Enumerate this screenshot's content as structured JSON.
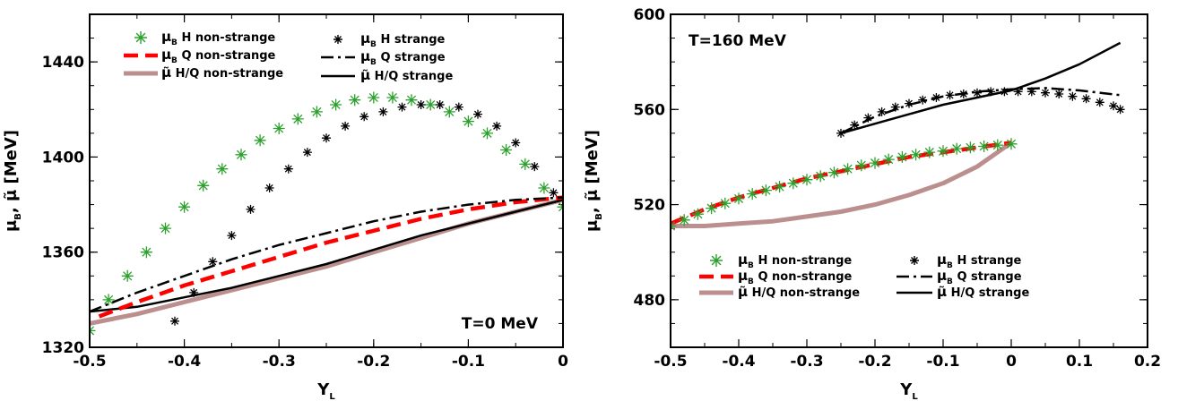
{
  "chart_data": [
    {
      "type": "line",
      "annotation": "T=0 MeV",
      "xlabel": "Y",
      "xlabel_sub": "L",
      "ylabel_parts": [
        "μ",
        "B",
        ", μ̃ [MeV]"
      ],
      "xlim": [
        -0.5,
        0
      ],
      "ylim": [
        1320,
        1460
      ],
      "x_ticks": [
        -0.5,
        -0.4,
        -0.3,
        -0.2,
        -0.1,
        0
      ],
      "x_tick_labels": [
        "-0.5",
        "-0.4",
        "-0.3",
        "-0.2",
        "-0.1",
        "0"
      ],
      "y_ticks": [
        1320,
        1360,
        1400,
        1440
      ],
      "y_tick_labels": [
        "1320",
        "1360",
        "1400",
        "1440"
      ],
      "legend_position": "top",
      "series": [
        {
          "name": "μB H non-strange",
          "label_main": "μ",
          "label_sub": "B",
          "label_rest": " H non-strange",
          "color": "#2ca02c",
          "style": "star-markers",
          "x": [
            -0.5,
            -0.48,
            -0.46,
            -0.44,
            -0.42,
            -0.4,
            -0.38,
            -0.36,
            -0.34,
            -0.32,
            -0.3,
            -0.28,
            -0.26,
            -0.24,
            -0.22,
            -0.2,
            -0.18,
            -0.16,
            -0.14,
            -0.12,
            -0.1,
            -0.08,
            -0.06,
            -0.04,
            -0.02,
            0
          ],
          "y": [
            1327,
            1340,
            1350,
            1360,
            1370,
            1379,
            1388,
            1395,
            1401,
            1407,
            1412,
            1416,
            1419,
            1422,
            1424,
            1425,
            1425,
            1424,
            1422,
            1419,
            1415,
            1410,
            1403,
            1397,
            1387,
            1379
          ]
        },
        {
          "name": "μB Q non-strange",
          "label_main": "μ",
          "label_sub": "B",
          "label_rest": " Q non-strange",
          "color": "#ff0000",
          "style": "dashed",
          "x": [
            -0.49,
            -0.45,
            -0.4,
            -0.35,
            -0.3,
            -0.25,
            -0.2,
            -0.15,
            -0.1,
            -0.05,
            0
          ],
          "y": [
            1333,
            1339,
            1346,
            1352,
            1358,
            1364,
            1369,
            1374,
            1378,
            1381,
            1383
          ]
        },
        {
          "name": "μ̃ H/Q non-strange",
          "label_main": "μ̃",
          "label_sub": "",
          "label_rest": "   H/Q non-strange",
          "color": "#bc8f8f",
          "style": "thick",
          "x": [
            -0.5,
            -0.45,
            -0.4,
            -0.35,
            -0.3,
            -0.25,
            -0.2,
            -0.15,
            -0.1,
            -0.05,
            0
          ],
          "y": [
            1330,
            1334,
            1339,
            1344,
            1349,
            1354,
            1360,
            1366,
            1372,
            1377,
            1382
          ]
        },
        {
          "name": "μB H strange",
          "label_main": "μ",
          "label_sub": "B",
          "label_rest": " H strange",
          "color": "#000000",
          "style": "star-markers",
          "x": [
            -0.41,
            -0.39,
            -0.37,
            -0.35,
            -0.33,
            -0.31,
            -0.29,
            -0.27,
            -0.25,
            -0.23,
            -0.21,
            -0.19,
            -0.17,
            -0.15,
            -0.13,
            -0.11,
            -0.09,
            -0.07,
            -0.05,
            -0.03,
            -0.01
          ],
          "y": [
            1331,
            1343,
            1356,
            1367,
            1378,
            1387,
            1395,
            1402,
            1408,
            1413,
            1417,
            1419,
            1421,
            1422,
            1422,
            1421,
            1418,
            1413,
            1406,
            1396,
            1385
          ]
        },
        {
          "name": "μB Q strange",
          "label_main": "μ",
          "label_sub": "B",
          "label_rest": " Q strange",
          "color": "#000000",
          "style": "dashdot",
          "x": [
            -0.5,
            -0.45,
            -0.4,
            -0.35,
            -0.3,
            -0.25,
            -0.2,
            -0.15,
            -0.1,
            -0.05,
            0
          ],
          "y": [
            1335,
            1343,
            1350,
            1357,
            1363,
            1368,
            1373,
            1377,
            1380,
            1382,
            1383
          ]
        },
        {
          "name": "μ̃ H/Q strange",
          "label_main": "μ̃",
          "label_sub": "",
          "label_rest": "   H/Q strange",
          "color": "#000000",
          "style": "solid",
          "x": [
            -0.5,
            -0.45,
            -0.4,
            -0.35,
            -0.3,
            -0.25,
            -0.2,
            -0.15,
            -0.1,
            -0.05,
            0
          ],
          "y": [
            1335,
            1337,
            1341,
            1345,
            1350,
            1355,
            1361,
            1367,
            1372,
            1377,
            1382
          ]
        }
      ]
    },
    {
      "type": "line",
      "annotation": "T=160 MeV",
      "xlabel": "Y",
      "xlabel_sub": "L",
      "ylabel_parts": [
        "μ",
        "B",
        ", μ̃ [MeV]"
      ],
      "xlim": [
        -0.5,
        0.2
      ],
      "ylim": [
        460,
        600
      ],
      "x_ticks": [
        -0.5,
        -0.4,
        -0.3,
        -0.2,
        -0.1,
        0,
        0.1,
        0.2
      ],
      "x_tick_labels": [
        "-0.5",
        "-0.4",
        "-0.3",
        "-0.2",
        "-0.1",
        "0",
        "0.1",
        "0.2"
      ],
      "y_ticks": [
        480,
        520,
        560,
        600
      ],
      "y_tick_labels": [
        "480",
        "520",
        "560",
        "600"
      ],
      "legend_position": "bottom",
      "series": [
        {
          "name": "μB H non-strange",
          "label_main": "μ",
          "label_sub": "B",
          "label_rest": " H non-strange",
          "color": "#2ca02c",
          "style": "star-markers",
          "x": [
            -0.5,
            -0.48,
            -0.46,
            -0.44,
            -0.42,
            -0.4,
            -0.38,
            -0.36,
            -0.34,
            -0.32,
            -0.3,
            -0.28,
            -0.26,
            -0.24,
            -0.22,
            -0.2,
            -0.18,
            -0.16,
            -0.14,
            -0.12,
            -0.1,
            -0.08,
            -0.06,
            -0.04,
            -0.02,
            0
          ],
          "y": [
            511,
            513.5,
            516,
            518.5,
            520.5,
            522.5,
            524.5,
            526,
            527.5,
            529,
            530.5,
            532,
            533.5,
            535,
            536.5,
            537.5,
            539,
            540,
            541,
            542,
            542.5,
            543.5,
            544,
            544.5,
            545,
            545.5
          ]
        },
        {
          "name": "μB Q non-strange",
          "label_main": "μ",
          "label_sub": "B",
          "label_rest": " Q non-strange",
          "color": "#ff0000",
          "style": "dashed",
          "x": [
            -0.5,
            -0.45,
            -0.4,
            -0.35,
            -0.3,
            -0.25,
            -0.2,
            -0.15,
            -0.1,
            -0.05,
            0
          ],
          "y": [
            512,
            518,
            523,
            527,
            531,
            534,
            537,
            540,
            542,
            544,
            546
          ]
        },
        {
          "name": "μ̃ H/Q non-strange",
          "label_main": "μ̃",
          "label_sub": "",
          "label_rest": "   H/Q non-strange",
          "color": "#bc8f8f",
          "style": "thick",
          "x": [
            -0.5,
            -0.45,
            -0.4,
            -0.35,
            -0.3,
            -0.25,
            -0.2,
            -0.15,
            -0.1,
            -0.05,
            0
          ],
          "y": [
            511,
            511,
            512,
            513,
            515,
            517,
            520,
            524,
            529,
            536,
            546
          ]
        },
        {
          "name": "μB H strange",
          "label_main": "μ",
          "label_sub": "B",
          "label_rest": " H strange",
          "color": "#000000",
          "style": "star-markers",
          "x": [
            -0.25,
            -0.23,
            -0.21,
            -0.19,
            -0.17,
            -0.15,
            -0.13,
            -0.11,
            -0.09,
            -0.07,
            -0.05,
            -0.03,
            -0.01,
            0.01,
            0.03,
            0.05,
            0.07,
            0.09,
            0.11,
            0.13,
            0.15,
            0.16
          ],
          "y": [
            550,
            553.5,
            556.5,
            559,
            561,
            562.5,
            564,
            565,
            566,
            566.5,
            567,
            567.5,
            567.5,
            567.5,
            567.5,
            567,
            566.5,
            565.5,
            564.5,
            563,
            561.5,
            560
          ]
        },
        {
          "name": "μB Q strange",
          "label_main": "μ",
          "label_sub": "B",
          "label_rest": " Q strange",
          "color": "#000000",
          "style": "dashdot",
          "x": [
            -0.25,
            -0.2,
            -0.15,
            -0.1,
            -0.05,
            0,
            0.05,
            0.1,
            0.16
          ],
          "y": [
            550,
            557,
            562,
            565.5,
            567.5,
            568.5,
            569,
            568,
            566
          ]
        },
        {
          "name": "μ̃ H/Q strange",
          "label_main": "μ̃",
          "label_sub": "",
          "label_rest": "   H/Q strange",
          "color": "#000000",
          "style": "solid",
          "x": [
            -0.25,
            -0.2,
            -0.15,
            -0.1,
            -0.05,
            0,
            0.05,
            0.1,
            0.16
          ],
          "y": [
            550,
            554,
            558,
            562,
            565,
            568,
            573,
            579,
            588
          ]
        }
      ]
    }
  ]
}
